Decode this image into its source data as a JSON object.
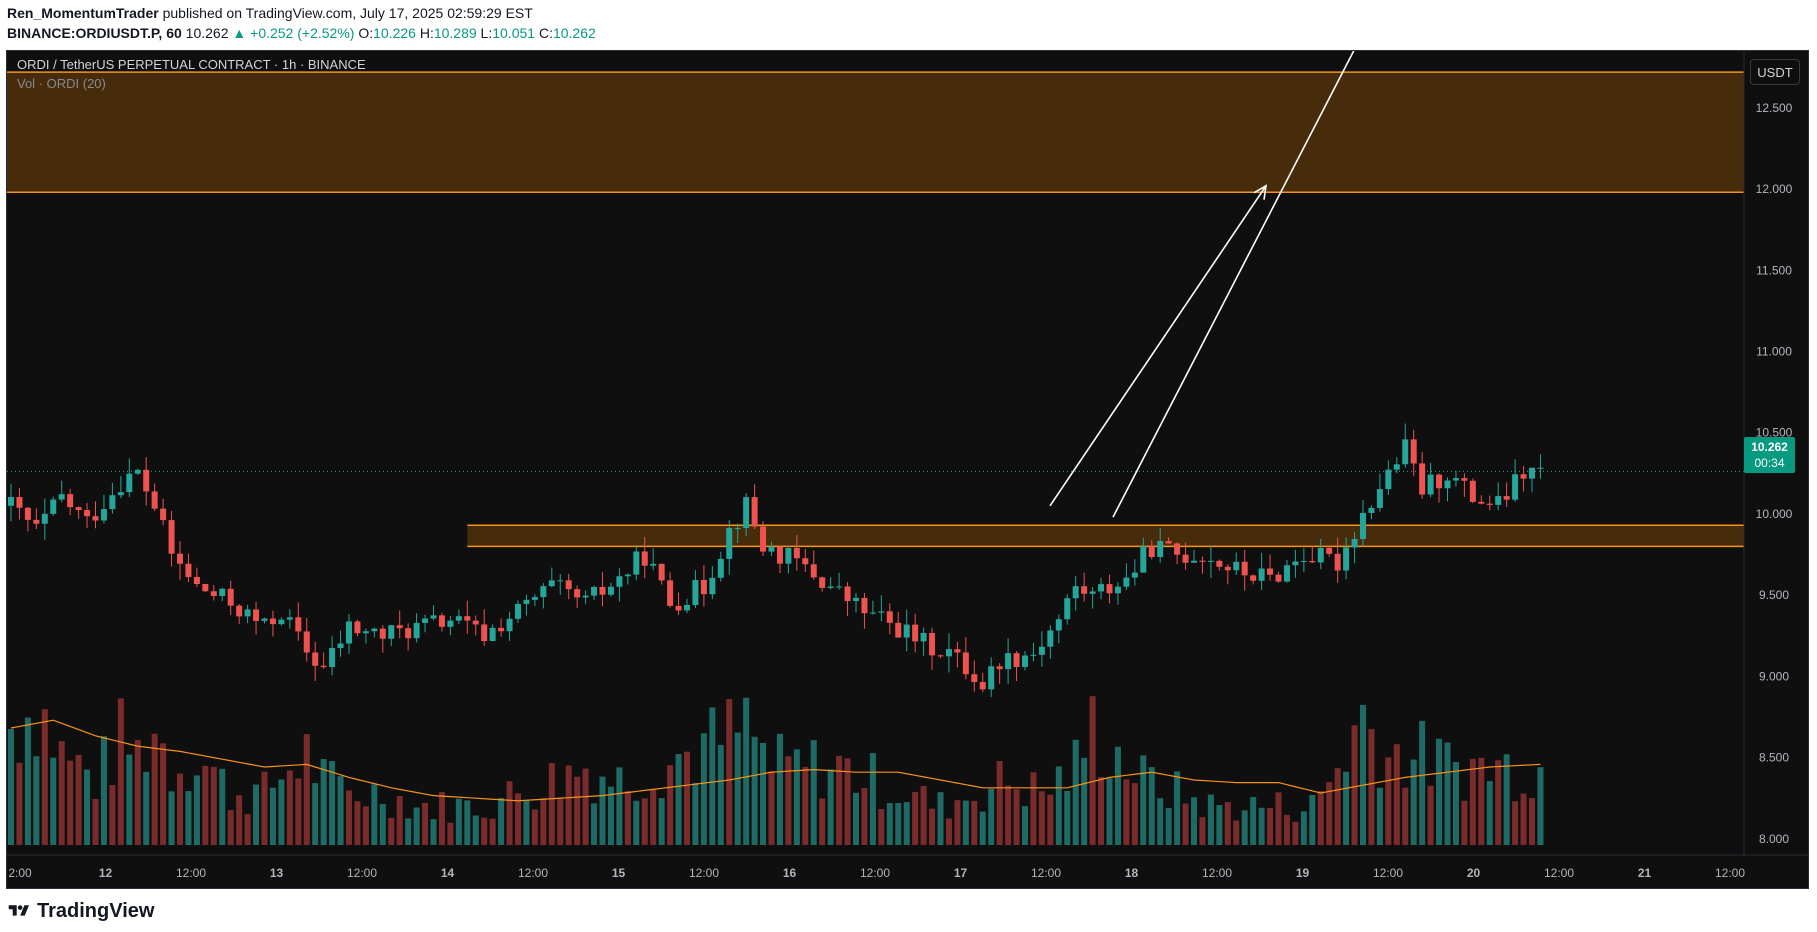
{
  "header": {
    "author": "Ren_MomentumTrader",
    "published": "published on TradingView.com, July 17, 2025 02:59:29 EST",
    "symbol": "BINANCE:ORDIUSDT.P, 60",
    "last": "10.262",
    "change": "▲ +0.252 (+2.52%)",
    "o_label": "O:",
    "o": "10.226",
    "h_label": "H:",
    "h": "10.289",
    "l_label": "L:",
    "l": "10.051",
    "c_label": "C:",
    "c": "10.262"
  },
  "legend": {
    "title": "ORDI / TetherUS PERPETUAL CONTRACT · 1h · BINANCE",
    "volume": "Vol · ORDI (20)"
  },
  "currency": "USDT",
  "price_label": {
    "price": "10.262",
    "countdown": "00:34"
  },
  "footer": {
    "brand": "TradingView"
  },
  "colors": {
    "up": "#26a69a",
    "down": "#ef5350",
    "up_vol": "#1e6b66",
    "down_vol": "#7a2c2c",
    "zone_fill": "#6b3f0a",
    "zone_line": "#f7931a",
    "ma": "#f7931a",
    "arrow": "#ffffff",
    "background": "#0f0f0f"
  },
  "chart_data": {
    "type": "candlestick",
    "title": "ORDI / TetherUS PERPETUAL CONTRACT · 1h · BINANCE",
    "x_ticks": [
      "2:00",
      "12",
      "12:00",
      "13",
      "12:00",
      "14",
      "12:00",
      "15",
      "12:00",
      "16",
      "12:00",
      "17",
      "12:00",
      "18",
      "12:00",
      "19",
      "12:00",
      "20",
      "12:00",
      "21",
      "12:00"
    ],
    "y_ticks": [
      "12.500",
      "12.000",
      "11.500",
      "11.000",
      "10.500",
      "10.000",
      "9.500",
      "9.000",
      "8.500",
      "8.000"
    ],
    "ylim": [
      7.9,
      12.85
    ],
    "last_price": 10.262,
    "supply_zone": [
      11.98,
      12.72
    ],
    "demand_zone": [
      9.8,
      9.93
    ],
    "price_anchors": [
      [
        0,
        10.05
      ],
      [
        3,
        9.9
      ],
      [
        6,
        10.1
      ],
      [
        9,
        9.95
      ],
      [
        13,
        10.2
      ],
      [
        15,
        10.25
      ],
      [
        17,
        10.05
      ],
      [
        19,
        9.75
      ],
      [
        22,
        9.55
      ],
      [
        26,
        9.45
      ],
      [
        30,
        9.3
      ],
      [
        32,
        9.4
      ],
      [
        35,
        9.15
      ],
      [
        37,
        9.05
      ],
      [
        40,
        9.3
      ],
      [
        44,
        9.25
      ],
      [
        48,
        9.3
      ],
      [
        52,
        9.35
      ],
      [
        56,
        9.25
      ],
      [
        60,
        9.4
      ],
      [
        64,
        9.55
      ],
      [
        68,
        9.45
      ],
      [
        72,
        9.6
      ],
      [
        75,
        9.75
      ],
      [
        78,
        9.45
      ],
      [
        82,
        9.55
      ],
      [
        85,
        9.9
      ],
      [
        87,
        10.05
      ],
      [
        89,
        9.8
      ],
      [
        93,
        9.7
      ],
      [
        97,
        9.55
      ],
      [
        101,
        9.4
      ],
      [
        105,
        9.3
      ],
      [
        108,
        9.2
      ],
      [
        111,
        9.15
      ],
      [
        113,
        9.05
      ],
      [
        115,
        8.95
      ],
      [
        117,
        9.1
      ],
      [
        121,
        9.15
      ],
      [
        124,
        9.35
      ],
      [
        126,
        9.55
      ],
      [
        128,
        9.5
      ],
      [
        132,
        9.6
      ],
      [
        135,
        9.8
      ],
      [
        138,
        9.75
      ],
      [
        141,
        9.75
      ],
      [
        145,
        9.65
      ],
      [
        149,
        9.6
      ],
      [
        153,
        9.75
      ],
      [
        157,
        9.7
      ],
      [
        160,
        10.0
      ],
      [
        163,
        10.25
      ],
      [
        165,
        10.4
      ],
      [
        167,
        10.15
      ],
      [
        170,
        10.25
      ],
      [
        173,
        10.1
      ],
      [
        176,
        10.05
      ],
      [
        179,
        10.25
      ],
      [
        181,
        10.26
      ]
    ],
    "volume_anchors": [
      [
        0,
        0.45
      ],
      [
        3,
        0.55
      ],
      [
        6,
        0.35
      ],
      [
        10,
        0.25
      ],
      [
        13,
        0.4
      ],
      [
        15,
        0.35
      ],
      [
        17,
        0.45
      ],
      [
        19,
        0.3
      ],
      [
        22,
        0.35
      ],
      [
        26,
        0.2
      ],
      [
        30,
        0.2
      ],
      [
        33,
        0.3
      ],
      [
        35,
        0.35
      ],
      [
        37,
        0.25
      ],
      [
        40,
        0.2
      ],
      [
        44,
        0.2
      ],
      [
        48,
        0.15
      ],
      [
        52,
        0.15
      ],
      [
        56,
        0.15
      ],
      [
        60,
        0.2
      ],
      [
        64,
        0.25
      ],
      [
        68,
        0.3
      ],
      [
        72,
        0.25
      ],
      [
        76,
        0.3
      ],
      [
        80,
        0.35
      ],
      [
        84,
        0.4
      ],
      [
        87,
        0.45
      ],
      [
        90,
        0.3
      ],
      [
        94,
        0.3
      ],
      [
        98,
        0.3
      ],
      [
        102,
        0.25
      ],
      [
        106,
        0.2
      ],
      [
        110,
        0.15
      ],
      [
        114,
        0.2
      ],
      [
        118,
        0.25
      ],
      [
        122,
        0.2
      ],
      [
        126,
        0.3
      ],
      [
        128,
        0.45
      ],
      [
        131,
        0.35
      ],
      [
        134,
        0.25
      ],
      [
        138,
        0.2
      ],
      [
        142,
        0.15
      ],
      [
        146,
        0.15
      ],
      [
        150,
        0.15
      ],
      [
        154,
        0.15
      ],
      [
        157,
        0.3
      ],
      [
        160,
        0.5
      ],
      [
        163,
        0.35
      ],
      [
        166,
        0.35
      ],
      [
        170,
        0.3
      ],
      [
        174,
        0.3
      ],
      [
        178,
        0.3
      ],
      [
        181,
        0.3
      ]
    ],
    "ma_anchors": [
      [
        0,
        0.45
      ],
      [
        5,
        0.48
      ],
      [
        10,
        0.42
      ],
      [
        15,
        0.38
      ],
      [
        20,
        0.36
      ],
      [
        25,
        0.33
      ],
      [
        30,
        0.3
      ],
      [
        35,
        0.31
      ],
      [
        40,
        0.26
      ],
      [
        45,
        0.22
      ],
      [
        50,
        0.19
      ],
      [
        55,
        0.18
      ],
      [
        60,
        0.17
      ],
      [
        65,
        0.18
      ],
      [
        70,
        0.19
      ],
      [
        75,
        0.21
      ],
      [
        80,
        0.23
      ],
      [
        85,
        0.25
      ],
      [
        90,
        0.28
      ],
      [
        95,
        0.29
      ],
      [
        100,
        0.28
      ],
      [
        105,
        0.28
      ],
      [
        110,
        0.25
      ],
      [
        115,
        0.22
      ],
      [
        120,
        0.22
      ],
      [
        125,
        0.22
      ],
      [
        130,
        0.26
      ],
      [
        135,
        0.28
      ],
      [
        140,
        0.25
      ],
      [
        145,
        0.24
      ],
      [
        150,
        0.24
      ],
      [
        155,
        0.2
      ],
      [
        160,
        0.23
      ],
      [
        165,
        0.26
      ],
      [
        170,
        0.28
      ],
      [
        175,
        0.3
      ],
      [
        181,
        0.31
      ]
    ],
    "candle_count": 182,
    "projection_arrows": [
      {
        "from": [
          1.8,
          10.05
        ],
        "to": [
          4.2,
          12.02
        ],
        "head": true
      },
      {
        "from": [
          2.5,
          9.98
        ],
        "to": [
          5.5,
          13.2
        ],
        "head": false
      }
    ]
  }
}
